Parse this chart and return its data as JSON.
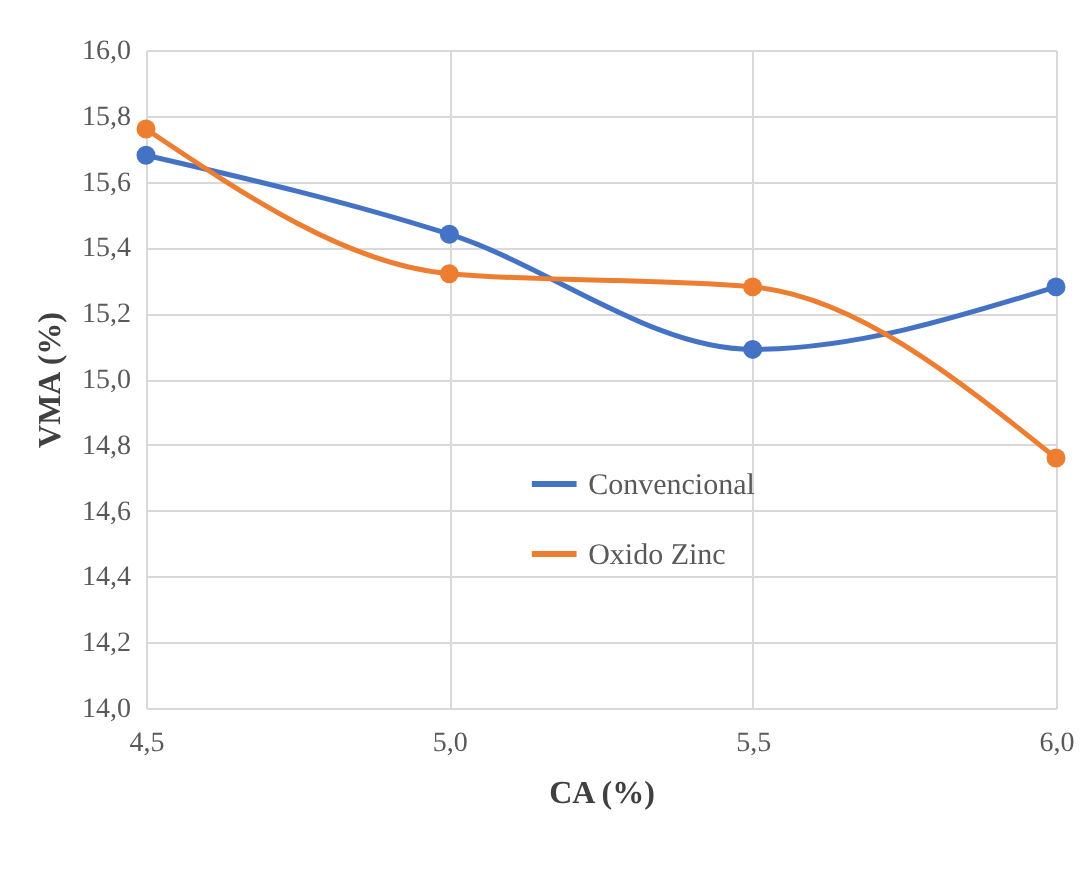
{
  "chart_data": {
    "type": "line",
    "xlabel": "CA (%)",
    "ylabel": "VMA (%)",
    "x": [
      4.5,
      5.0,
      5.5,
      6.0
    ],
    "series": [
      {
        "name": "Convencional",
        "color": "#4472c4",
        "values": [
          15.68,
          15.44,
          15.09,
          15.28
        ]
      },
      {
        "name": "Oxido Zinc",
        "color": "#ed7d31",
        "values": [
          15.76,
          15.32,
          15.28,
          14.76
        ]
      }
    ],
    "xlim": [
      4.5,
      6.0
    ],
    "xticks": [
      {
        "value": 4.5,
        "label": "4,5"
      },
      {
        "value": 5.0,
        "label": "5,0"
      },
      {
        "value": 5.5,
        "label": "5,5"
      },
      {
        "value": 6.0,
        "label": "6,0"
      }
    ],
    "ylim": [
      14.0,
      16.0
    ],
    "yticks": [
      {
        "value": 14.0,
        "label": "14,0"
      },
      {
        "value": 14.2,
        "label": "14,2"
      },
      {
        "value": 14.4,
        "label": "14,4"
      },
      {
        "value": 14.6,
        "label": "14,6"
      },
      {
        "value": 14.8,
        "label": "14,8"
      },
      {
        "value": 15.0,
        "label": "15,0"
      },
      {
        "value": 15.2,
        "label": "15,2"
      },
      {
        "value": 15.4,
        "label": "15,4"
      },
      {
        "value": 15.6,
        "label": "15,6"
      },
      {
        "value": 15.8,
        "label": "15,8"
      },
      {
        "value": 16.0,
        "label": "16,0"
      }
    ],
    "grid": true,
    "legend": "center",
    "marker": "circle",
    "line_style": "solid"
  }
}
